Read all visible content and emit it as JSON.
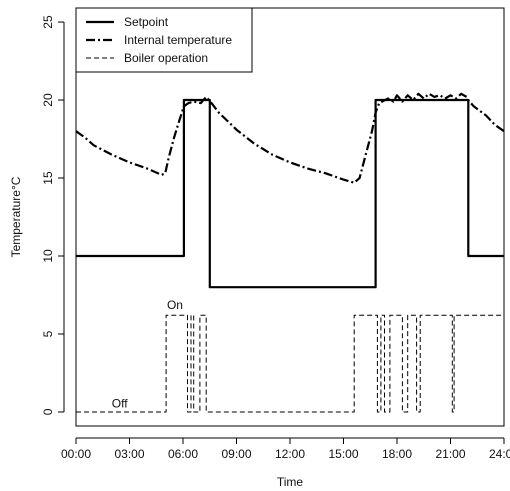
{
  "chart_data": {
    "type": "line",
    "xlabel": "Time",
    "ylabel": "Temperature°C",
    "xlim": [
      0,
      24
    ],
    "ylim": [
      -0.9,
      25.9
    ],
    "x_ticks": [
      {
        "value": 0,
        "label": "00:00"
      },
      {
        "value": 3,
        "label": "03:00"
      },
      {
        "value": 6,
        "label": "06:00"
      },
      {
        "value": 9,
        "label": "09:00"
      },
      {
        "value": 12,
        "label": "12:00"
      },
      {
        "value": 15,
        "label": "15:00"
      },
      {
        "value": 18,
        "label": "18:00"
      },
      {
        "value": 21,
        "label": "21:00"
      },
      {
        "value": 24,
        "label": "24:00"
      }
    ],
    "y_ticks": [
      {
        "value": 0,
        "label": "0"
      },
      {
        "value": 5,
        "label": "5"
      },
      {
        "value": 10,
        "label": "10"
      },
      {
        "value": 15,
        "label": "15"
      },
      {
        "value": 20,
        "label": "20"
      },
      {
        "value": 25,
        "label": "25"
      }
    ],
    "grid": false,
    "legend_position": "top-left",
    "series": [
      {
        "name": "Setpoint",
        "style": "solid",
        "x": [
          0,
          6.05,
          6.05,
          7.5,
          7.5,
          16.8,
          16.8,
          22.0,
          22.0,
          24
        ],
        "y": [
          10,
          10,
          20,
          20,
          8,
          8,
          20,
          20,
          10,
          10
        ]
      },
      {
        "name": "Internal temperature",
        "style": "dashdot",
        "x": [
          0,
          0.5,
          1,
          2,
          3,
          4,
          4.8,
          5.0,
          5.2,
          5.5,
          5.8,
          6.05,
          6.3,
          6.6,
          7.0,
          7.3,
          7.6,
          8.0,
          9,
          10,
          11,
          12,
          13,
          14,
          15,
          15.6,
          15.9,
          16.2,
          16.6,
          16.8,
          17.0,
          17.5,
          17.8,
          18.0,
          18.3,
          18.6,
          18.9,
          19.2,
          19.5,
          19.8,
          20.1,
          20.4,
          20.7,
          21.0,
          21.3,
          21.6,
          21.9,
          22.0,
          22.3,
          23,
          23.5,
          24
        ],
        "y": [
          18.0,
          17.6,
          17.1,
          16.5,
          16.0,
          15.6,
          15.2,
          15.3,
          16.3,
          17.6,
          18.7,
          19.6,
          19.8,
          19.9,
          19.8,
          20.2,
          19.8,
          19.2,
          18.1,
          17.2,
          16.5,
          16.0,
          15.6,
          15.3,
          14.9,
          14.7,
          15.0,
          16.3,
          18.0,
          19.2,
          19.8,
          20.1,
          19.9,
          20.3,
          19.9,
          20.3,
          20.0,
          20.4,
          20.1,
          20.4,
          20.2,
          20.3,
          20.1,
          20.3,
          20.1,
          20.4,
          20.2,
          20.0,
          19.6,
          19.0,
          18.4,
          18.0
        ]
      },
      {
        "name": "Boiler operation",
        "style": "dashed",
        "x": [
          0,
          5.05,
          5.05,
          6.25,
          6.25,
          6.45,
          6.45,
          6.6,
          6.6,
          6.95,
          6.95,
          7.3,
          7.3,
          15.6,
          15.6,
          16.9,
          16.9,
          17.1,
          17.1,
          17.3,
          17.3,
          17.6,
          17.6,
          18.3,
          18.3,
          18.6,
          18.6,
          19.1,
          19.1,
          19.3,
          19.3,
          21.1,
          21.1,
          21.2,
          21.2,
          24
        ],
        "y": [
          0,
          0,
          6.2,
          6.2,
          0,
          0,
          6.2,
          6.2,
          0,
          0,
          6.2,
          6.2,
          0,
          0,
          6.2,
          6.2,
          0,
          0,
          6.2,
          6.2,
          0,
          0,
          6.2,
          6.2,
          0,
          0,
          6.2,
          6.2,
          0,
          0,
          6.2,
          6.2,
          0,
          0,
          6.2,
          6.2
        ]
      }
    ],
    "annotations": [
      {
        "text": "On",
        "x": 5.55,
        "y": 6.6
      },
      {
        "text": "Off",
        "x": 2.45,
        "y": 0.3
      }
    ]
  }
}
